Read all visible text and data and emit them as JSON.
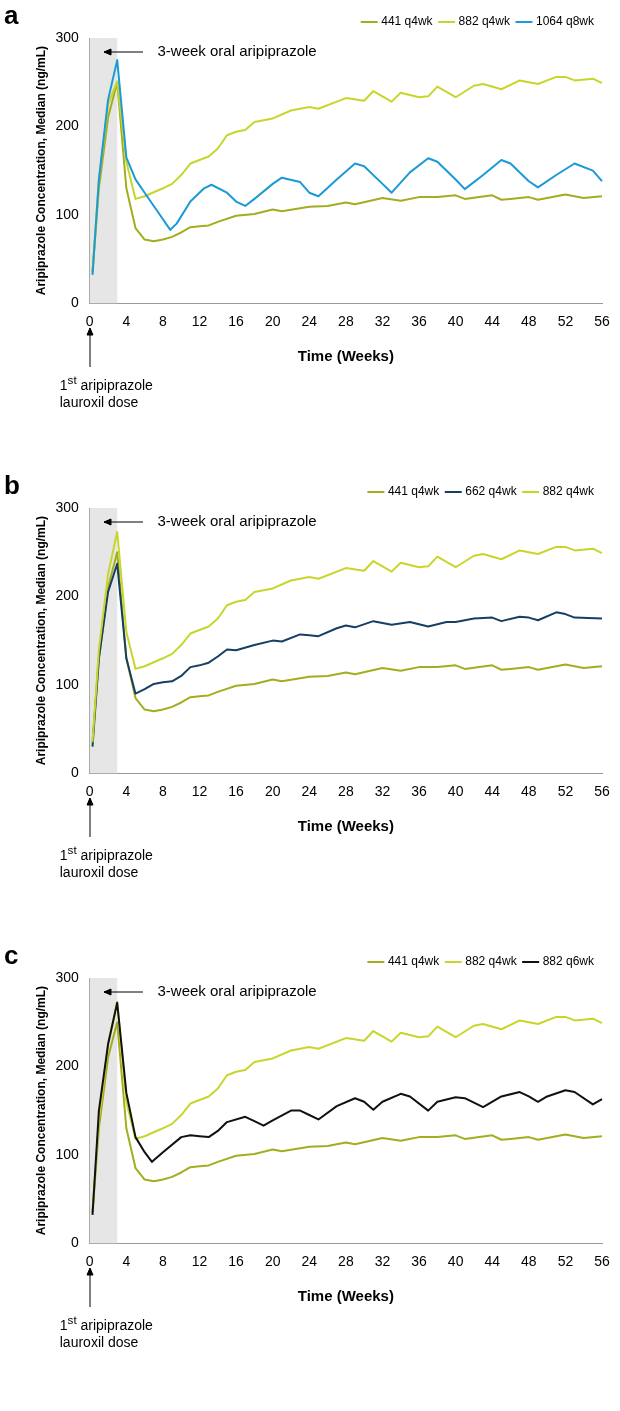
{
  "chart_data": [
    {
      "type": "line",
      "title": "a",
      "xlabel": "Time (Weeks)",
      "ylabel": "Aripiprazole Concentration, Median (ng/mL)",
      "xlim": [
        0,
        56
      ],
      "xticks": [
        0,
        4,
        8,
        12,
        16,
        20,
        24,
        28,
        32,
        36,
        40,
        44,
        48,
        52,
        56
      ],
      "ylim": [
        0,
        300
      ],
      "yticks": [
        0,
        100,
        200,
        300
      ],
      "grid": false,
      "legend": "top right",
      "marker": "none",
      "line_style": "solid",
      "bands": [
        {
          "axis": "x",
          "from": 0,
          "to": 3,
          "color": "#e6e6e6"
        }
      ],
      "annotations": [
        "3-week oral aripiprazole",
        "1$^{st}$ aripiprazole lauroxil dose"
      ],
      "series": [
        {
          "name": "441 q4wk",
          "color": "#a3ae1f",
          "x": [
            0.3,
            1,
            2,
            3,
            3.5,
            4,
            5,
            6,
            7,
            8,
            9,
            10,
            11,
            12,
            13,
            14,
            16,
            18,
            20,
            21,
            24,
            26,
            28,
            29,
            32,
            34,
            36,
            38,
            40,
            41,
            44,
            45,
            48,
            49,
            52,
            54,
            56
          ],
          "values": [
            35,
            130,
            210,
            250,
            190,
            130,
            85,
            72,
            70,
            72,
            75,
            80,
            86,
            87,
            88,
            92,
            99,
            101,
            106,
            104,
            109,
            110,
            114,
            112,
            119,
            116,
            120,
            120,
            122,
            118,
            122,
            117,
            120,
            117,
            123,
            119,
            121
          ]
        },
        {
          "name": "882 q4wk",
          "color": "#c8d62b",
          "x": [
            0.3,
            1,
            2,
            3,
            4,
            5,
            6,
            8,
            9,
            10,
            11,
            12,
            13,
            14,
            15,
            16,
            17,
            18,
            20,
            22,
            24,
            25,
            28,
            30,
            31,
            33,
            34,
            36,
            37,
            38,
            40,
            42,
            43,
            45,
            47,
            49,
            51,
            52,
            53,
            55,
            56
          ],
          "values": [
            35,
            140,
            225,
            251,
            160,
            118,
            121,
            130,
            135,
            145,
            158,
            162,
            166,
            175,
            190,
            194,
            196,
            205,
            209,
            218,
            222,
            220,
            232,
            229,
            240,
            228,
            238,
            233,
            234,
            245,
            233,
            246,
            248,
            242,
            252,
            248,
            256,
            256,
            252,
            254,
            249
          ]
        },
        {
          "name": "1064 q8wk",
          "color": "#1a9ad6",
          "x": [
            0.3,
            1,
            2,
            3,
            4,
            5,
            6,
            7,
            8,
            8.8,
            9.5,
            11,
            12.5,
            13.3,
            15,
            16,
            17,
            18,
            20,
            21,
            23,
            24,
            25,
            27,
            29,
            30,
            32,
            33,
            35,
            37,
            38,
            40,
            41,
            43,
            45,
            46,
            48,
            49,
            51,
            53,
            55,
            56
          ],
          "values": [
            32,
            140,
            230,
            275,
            165,
            140,
            125,
            110,
            95,
            83,
            90,
            115,
            130,
            134,
            125,
            115,
            110,
            118,
            135,
            142,
            137,
            125,
            121,
            140,
            158,
            155,
            135,
            125,
            148,
            164,
            160,
            140,
            129,
            145,
            162,
            158,
            138,
            131,
            145,
            158,
            150,
            138
          ]
        }
      ]
    },
    {
      "type": "line",
      "title": "b",
      "xlabel": "Time (Weeks)",
      "ylabel": "Aripiprazole Concentration, Median (ng/mL)",
      "xlim": [
        0,
        56
      ],
      "xticks": [
        0,
        4,
        8,
        12,
        16,
        20,
        24,
        28,
        32,
        36,
        40,
        44,
        48,
        52,
        56
      ],
      "ylim": [
        0,
        300
      ],
      "yticks": [
        0,
        100,
        200,
        300
      ],
      "grid": false,
      "legend": "top right",
      "marker": "none",
      "line_style": "solid",
      "bands": [
        {
          "axis": "x",
          "from": 0,
          "to": 3,
          "color": "#e6e6e6"
        }
      ],
      "annotations": [
        "3-week oral aripiprazole",
        "1$^{st}$ aripiprazole lauroxil dose"
      ],
      "series": [
        {
          "name": "441 q4wk",
          "color": "#a3ae1f",
          "x": [
            0.3,
            1,
            2,
            3,
            3.5,
            4,
            5,
            6,
            7,
            8,
            9,
            10,
            11,
            12,
            13,
            14,
            16,
            18,
            20,
            21,
            24,
            26,
            28,
            29,
            32,
            34,
            36,
            38,
            40,
            41,
            44,
            45,
            48,
            49,
            52,
            54,
            56
          ],
          "values": [
            35,
            130,
            210,
            250,
            190,
            130,
            85,
            72,
            70,
            72,
            75,
            80,
            86,
            87,
            88,
            92,
            99,
            101,
            106,
            104,
            109,
            110,
            114,
            112,
            119,
            116,
            120,
            120,
            122,
            118,
            122,
            117,
            120,
            117,
            123,
            119,
            121
          ]
        },
        {
          "name": "662 q4wk",
          "color": "#163f63",
          "x": [
            0.3,
            1,
            2,
            3,
            4,
            5,
            6,
            7,
            8,
            9,
            10,
            11,
            12,
            13,
            14,
            15,
            16,
            18,
            20,
            21,
            23,
            24,
            25,
            27,
            28,
            29,
            31,
            33,
            35,
            37,
            39,
            40,
            42,
            44,
            45,
            47,
            48,
            49,
            51,
            52,
            53,
            56
          ],
          "values": [
            30,
            130,
            205,
            237,
            130,
            90,
            95,
            101,
            103,
            104,
            110,
            120,
            122,
            125,
            132,
            140,
            139,
            145,
            150,
            149,
            157,
            156,
            155,
            164,
            167,
            165,
            172,
            168,
            171,
            166,
            171,
            171,
            175,
            176,
            172,
            177,
            176,
            173,
            182,
            180,
            176,
            175
          ]
        },
        {
          "name": "882 q4wk",
          "color": "#c8d62b",
          "x": [
            0.3,
            1,
            2,
            3,
            4,
            5,
            6,
            8,
            9,
            10,
            11,
            12,
            13,
            14,
            15,
            16,
            17,
            18,
            20,
            22,
            24,
            25,
            28,
            30,
            31,
            33,
            34,
            36,
            37,
            38,
            40,
            42,
            43,
            45,
            47,
            49,
            51,
            52,
            53,
            55,
            56
          ],
          "values": [
            35,
            140,
            225,
            273,
            160,
            118,
            121,
            130,
            135,
            145,
            158,
            162,
            166,
            175,
            190,
            194,
            196,
            205,
            209,
            218,
            222,
            220,
            232,
            229,
            240,
            228,
            238,
            233,
            234,
            245,
            233,
            246,
            248,
            242,
            252,
            248,
            256,
            256,
            252,
            254,
            249
          ]
        }
      ]
    },
    {
      "type": "line",
      "title": "c",
      "xlabel": "Time (Weeks)",
      "ylabel": "Aripiprazole Concentration, Median (ng/mL)",
      "xlim": [
        0,
        56
      ],
      "xticks": [
        0,
        4,
        8,
        12,
        16,
        20,
        24,
        28,
        32,
        36,
        40,
        44,
        48,
        52,
        56
      ],
      "ylim": [
        0,
        300
      ],
      "yticks": [
        0,
        100,
        200,
        300
      ],
      "grid": false,
      "legend": "top right",
      "marker": "none",
      "line_style": "solid",
      "bands": [
        {
          "axis": "x",
          "from": 0,
          "to": 3,
          "color": "#e6e6e6"
        }
      ],
      "annotations": [
        "3-week oral aripiprazole",
        "1$^{st}$ aripiprazole lauroxil dose"
      ],
      "series": [
        {
          "name": "441 q4wk",
          "color": "#a3ae1f",
          "x": [
            0.3,
            1,
            2,
            3,
            3.5,
            4,
            5,
            6,
            7,
            8,
            9,
            10,
            11,
            12,
            13,
            14,
            16,
            18,
            20,
            21,
            24,
            26,
            28,
            29,
            32,
            34,
            36,
            38,
            40,
            41,
            44,
            45,
            48,
            49,
            52,
            54,
            56
          ],
          "values": [
            35,
            130,
            210,
            250,
            190,
            130,
            85,
            72,
            70,
            72,
            75,
            80,
            86,
            87,
            88,
            92,
            99,
            101,
            106,
            104,
            109,
            110,
            114,
            112,
            119,
            116,
            120,
            120,
            122,
            118,
            122,
            117,
            120,
            117,
            123,
            119,
            121
          ]
        },
        {
          "name": "882 q4wk",
          "color": "#c8d62b",
          "x": [
            0.3,
            1,
            2,
            3,
            4,
            5,
            6,
            8,
            9,
            10,
            11,
            12,
            13,
            14,
            15,
            16,
            17,
            18,
            20,
            22,
            24,
            25,
            28,
            30,
            31,
            33,
            34,
            36,
            37,
            38,
            40,
            42,
            43,
            45,
            47,
            49,
            51,
            52,
            53,
            55,
            56
          ],
          "values": [
            35,
            140,
            225,
            273,
            160,
            118,
            121,
            130,
            135,
            145,
            158,
            162,
            166,
            175,
            190,
            194,
            196,
            205,
            209,
            218,
            222,
            220,
            232,
            229,
            240,
            228,
            238,
            233,
            234,
            245,
            233,
            246,
            248,
            242,
            252,
            248,
            256,
            256,
            252,
            254,
            249
          ]
        },
        {
          "name": "882 q6wk",
          "color": "#111111",
          "x": [
            0.3,
            1,
            2,
            3,
            4,
            5,
            6,
            6.8,
            8,
            10,
            11,
            12,
            13,
            14,
            15,
            17,
            18,
            19,
            20,
            22,
            23,
            24,
            25,
            27,
            29,
            30,
            31,
            32,
            34,
            35,
            37,
            38,
            40,
            41,
            43,
            45,
            47,
            48,
            49,
            50,
            52,
            53,
            55,
            56
          ],
          "values": [
            32,
            150,
            225,
            272,
            170,
            120,
            103,
            92,
            103,
            120,
            122,
            121,
            120,
            127,
            137,
            143,
            138,
            133,
            139,
            150,
            150,
            145,
            140,
            155,
            164,
            160,
            151,
            160,
            169,
            166,
            150,
            160,
            165,
            164,
            154,
            166,
            171,
            166,
            160,
            166,
            173,
            171,
            157,
            163
          ]
        }
      ]
    }
  ]
}
